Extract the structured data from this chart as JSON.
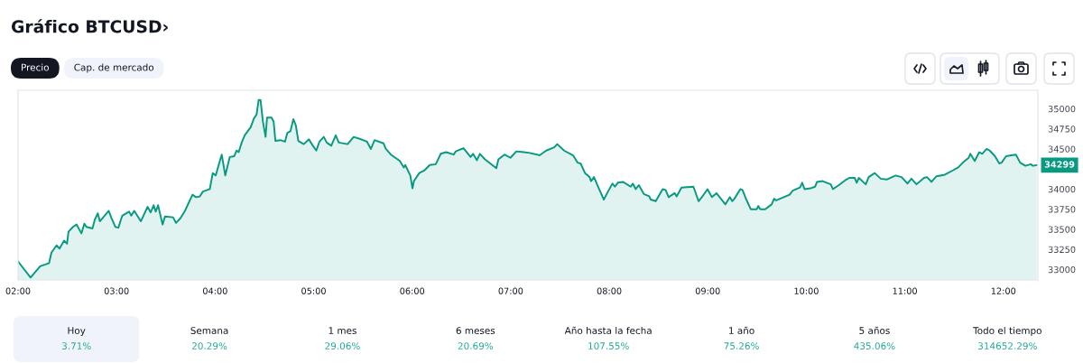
{
  "chart_data": {
    "type": "area",
    "title": "Gráfico BTCUSD›",
    "x": [
      2.0,
      2.127,
      2.224,
      2.315,
      2.339,
      2.391,
      2.421,
      2.467,
      2.497,
      2.512,
      2.558,
      2.594,
      2.643,
      2.673,
      2.694,
      2.755,
      2.779,
      2.809,
      2.83,
      2.921,
      2.945,
      2.988,
      3.018,
      3.058,
      3.127,
      3.149,
      3.179,
      3.246,
      3.315,
      3.346,
      3.376,
      3.397,
      3.421,
      3.467,
      3.491,
      3.573,
      3.603,
      3.649,
      3.694,
      3.77,
      3.806,
      3.845,
      3.876,
      3.946,
      3.976,
      4.006,
      4.027,
      4.067,
      4.103,
      4.149,
      4.194,
      4.218,
      4.239,
      4.27,
      4.3,
      4.361,
      4.394,
      4.421,
      4.442,
      4.461,
      4.485,
      4.512,
      4.527,
      4.573,
      4.594,
      4.612,
      4.664,
      4.709,
      4.733,
      4.764,
      4.794,
      4.818,
      4.845,
      4.9,
      4.952,
      4.982,
      5.027,
      5.058,
      5.103,
      5.133,
      5.179,
      5.224,
      5.255,
      5.345,
      5.406,
      5.482,
      5.542,
      5.581,
      5.618,
      5.709,
      5.733,
      5.784,
      5.875,
      5.915,
      5.93,
      5.981,
      6.003,
      6.018,
      6.072,
      6.121,
      6.178,
      6.239,
      6.29,
      6.345,
      6.421,
      6.442,
      6.521,
      6.593,
      6.618,
      6.657,
      6.687,
      6.739,
      6.854,
      6.875,
      6.936,
      6.997,
      7.057,
      7.133,
      7.193,
      7.269,
      7.293,
      7.36,
      7.442,
      7.472,
      7.542,
      7.633,
      7.678,
      7.709,
      7.754,
      7.8,
      7.815,
      7.845,
      7.89,
      7.945,
      7.987,
      8.033,
      8.057,
      8.087,
      8.139,
      8.218,
      8.239,
      8.269,
      8.3,
      8.351,
      8.406,
      8.421,
      8.472,
      8.542,
      8.572,
      8.603,
      8.663,
      8.684,
      8.733,
      8.854,
      8.875,
      8.906,
      8.952,
      8.997,
      9.042,
      9.088,
      9.179,
      9.224,
      9.248,
      9.27,
      9.33,
      9.352,
      9.391,
      9.436,
      9.497,
      9.512,
      9.533,
      9.582,
      9.648,
      9.673,
      9.694,
      9.77,
      9.83,
      9.861,
      9.936,
      9.958,
      9.982,
      10.042,
      10.088,
      10.109,
      10.164,
      10.248,
      10.27,
      10.33,
      10.406,
      10.436,
      10.491,
      10.512,
      10.533,
      10.603,
      10.633,
      10.694,
      10.755,
      10.815,
      10.906,
      10.967,
      11.027,
      11.067,
      11.118,
      11.194,
      11.224,
      11.27,
      11.321,
      11.406,
      11.482,
      11.542,
      11.588,
      11.648,
      11.664,
      11.709,
      11.755,
      11.785,
      11.83,
      11.861,
      11.915,
      11.958,
      11.982,
      12.027,
      12.079,
      12.127,
      12.17,
      12.224,
      12.279,
      12.3,
      12.339
    ],
    "series": [
      {
        "color": "#089981",
        "values": [
          33100,
          32900,
          33040,
          33080,
          33210,
          33300,
          33260,
          33360,
          33320,
          33470,
          33530,
          33560,
          33450,
          33570,
          33530,
          33510,
          33620,
          33700,
          33600,
          33730,
          33650,
          33530,
          33520,
          33670,
          33720,
          33670,
          33730,
          33600,
          33780,
          33710,
          33800,
          33720,
          33800,
          33560,
          33660,
          33650,
          33580,
          33640,
          33730,
          33930,
          33900,
          33910,
          33970,
          34000,
          34200,
          34170,
          34260,
          34430,
          34170,
          34400,
          34410,
          34480,
          34460,
          34580,
          34670,
          34770,
          34880,
          34930,
          35110,
          35110,
          34840,
          34650,
          34890,
          34890,
          34840,
          34600,
          34610,
          34590,
          34700,
          34720,
          34870,
          34800,
          34600,
          34560,
          34620,
          34560,
          34480,
          34590,
          34650,
          34580,
          34540,
          34670,
          34580,
          34560,
          34650,
          34620,
          34590,
          34500,
          34610,
          34570,
          34500,
          34430,
          34350,
          34270,
          34300,
          34170,
          34010,
          34100,
          34200,
          34230,
          34300,
          34310,
          34440,
          34460,
          34430,
          34470,
          34510,
          34400,
          34440,
          34360,
          34440,
          34370,
          34260,
          34370,
          34430,
          34390,
          34470,
          34460,
          34450,
          34430,
          34420,
          34480,
          34520,
          34560,
          34480,
          34420,
          34330,
          34320,
          34200,
          34150,
          34100,
          34150,
          34020,
          33870,
          33970,
          34070,
          34030,
          34080,
          34090,
          34030,
          34070,
          34000,
          34050,
          33940,
          33910,
          33870,
          33850,
          34000,
          33990,
          33900,
          33950,
          33910,
          34020,
          34030,
          33960,
          33850,
          33920,
          34000,
          33900,
          33950,
          33810,
          33900,
          33850,
          33880,
          34000,
          33990,
          33870,
          33750,
          33750,
          33790,
          33750,
          33750,
          33810,
          33880,
          33860,
          33900,
          33930,
          33980,
          34020,
          34080,
          34000,
          34010,
          34030,
          34090,
          34100,
          34060,
          34000,
          34050,
          34120,
          34140,
          34140,
          34080,
          34140,
          34060,
          34150,
          34200,
          34130,
          34120,
          34170,
          34150,
          34070,
          34130,
          34060,
          34140,
          34150,
          34090,
          34160,
          34180,
          34230,
          34270,
          34330,
          34390,
          34440,
          34350,
          34460,
          34440,
          34500,
          34480,
          34410,
          34320,
          34330,
          34410,
          34420,
          34430,
          34330,
          34290,
          34310,
          34290,
          34299
        ]
      }
    ],
    "xlim": [
      2,
      12.35
    ],
    "ylim": [
      32870,
      35230
    ],
    "xticks": [
      {
        "value": 2,
        "label": "02:00"
      },
      {
        "value": 3,
        "label": "03:00"
      },
      {
        "value": 4,
        "label": "04:00"
      },
      {
        "value": 5,
        "label": "05:00"
      },
      {
        "value": 6,
        "label": "06:00"
      },
      {
        "value": 7,
        "label": "07:00"
      },
      {
        "value": 8,
        "label": "08:00"
      },
      {
        "value": 9,
        "label": "09:00"
      },
      {
        "value": 10,
        "label": "10:00"
      },
      {
        "value": 11,
        "label": "11:00"
      },
      {
        "value": 12,
        "label": "12:00"
      }
    ],
    "yticks": [
      33000,
      33250,
      33500,
      33750,
      34000,
      34500,
      34750,
      35000
    ],
    "annotations": [
      {
        "text": "34299",
        "x": 12.339,
        "y": 34299
      },
      "Precio",
      "Cap. de mercado",
      "Hoy",
      "3.71%",
      "Semana",
      "20.29%",
      "1 mes",
      "29.06%",
      "6 meses",
      "20.69%",
      "Año hasta la fecha",
      "107.55%",
      "1 año",
      "75.26%",
      "5 años",
      "435.06%",
      "Todo el tiempo",
      "314652.29%"
    ]
  }
}
